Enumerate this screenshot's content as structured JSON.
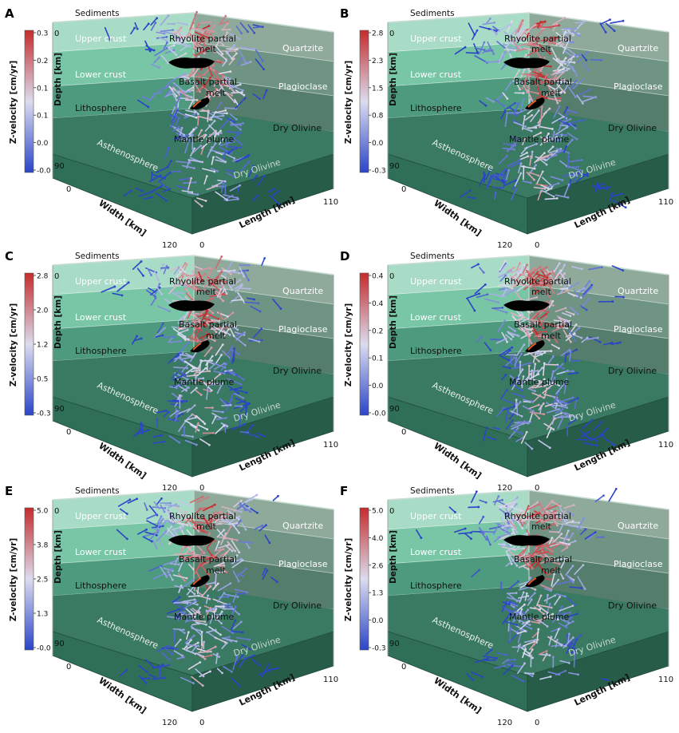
{
  "layer_labels": {
    "sediments": "Sediments",
    "upper_crust": "Upper crust",
    "lower_crust": "Lower crust",
    "lithosphere": "Lithosphere",
    "asthenosphere": "Asthenosphere",
    "quartzite": "Quartzite",
    "plagioclase": "Plagioclase",
    "dry_olivine": "Dry Olivine",
    "dry_olivine_base": "Dry Olivine"
  },
  "feature_labels": {
    "rhyolite_1": "Rhyolite partial",
    "rhyolite_2": "melt",
    "basalt_1": "Basalt partial",
    "basalt_2": "melt",
    "plume": "Mantle plume"
  },
  "axes": {
    "depth": "Depth [km]",
    "width": "Width [km]",
    "length": "Length [km]",
    "depth_top": "0",
    "depth_bottom": "90",
    "width_min": "0",
    "width_max": "120",
    "length_min": "0",
    "length_max": "110"
  },
  "colorbar_title": "Z-velocity [cm/yr]",
  "colors": {
    "upper_crust": "#a9dcc6",
    "lower_crust": "#79c6a6",
    "lithosphere": "#4e9a7e",
    "asthenosphere": "#2f6e57",
    "asth_top": "#3a7a62",
    "right_q": "#8fa99a",
    "right_p": "#6f9483",
    "right_o": "#557d6b",
    "arrow_low": "#2a45c8",
    "arrow_mid": "#dcdcef",
    "arrow_high": "#c42c2c"
  },
  "panels": [
    {
      "letter": "A",
      "ticks": [
        "0.3",
        "0.2",
        "0.1",
        "0.1",
        "0.0",
        "-0.0"
      ]
    },
    {
      "letter": "B",
      "ticks": [
        "2.8",
        "2.3",
        "1.5",
        "0.8",
        "0.0",
        "-0.3"
      ]
    },
    {
      "letter": "C",
      "ticks": [
        "2.8",
        "2.0",
        "1.2",
        "0.5",
        "-0.3"
      ]
    },
    {
      "letter": "D",
      "ticks": [
        "0.4",
        "0.4",
        "0.2",
        "0.1",
        "0.0",
        "-0.0"
      ]
    },
    {
      "letter": "E",
      "ticks": [
        "5.0",
        "3.8",
        "2.5",
        "1.3",
        "-0.0"
      ]
    },
    {
      "letter": "F",
      "ticks": [
        "5.0",
        "4.0",
        "2.6",
        "1.3",
        "0.0",
        "-0.3"
      ]
    }
  ]
}
